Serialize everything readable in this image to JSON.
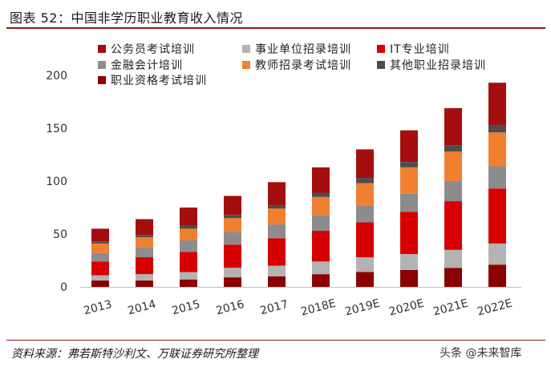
{
  "title": "图表 52：中国非学历职业教育收入情况",
  "source": "资料来源：弗若斯特沙利文、万联证券研究所整理",
  "watermark": "头条 @未来智库",
  "chart_data": {
    "type": "bar",
    "stacked": true,
    "categories": [
      "2013",
      "2014",
      "2015",
      "2016",
      "2017",
      "2018E",
      "2019E",
      "2020E",
      "2021E",
      "2022E"
    ],
    "ylim": [
      0,
      200
    ],
    "yticks": [
      0,
      50,
      100,
      150,
      200
    ],
    "grid": false,
    "legend_position": "top-left",
    "series": [
      {
        "name": "职业资格考试培训",
        "color": "#8b0000",
        "values": [
          6,
          6,
          7,
          9,
          10,
          12,
          14,
          16,
          18,
          21
        ]
      },
      {
        "name": "事业单位招录培训",
        "color": "#b3b3b3",
        "values": [
          5,
          6,
          7,
          9,
          10,
          12,
          14,
          15,
          17,
          20
        ]
      },
      {
        "name": "IT专业培训",
        "color": "#d60000",
        "values": [
          13,
          16,
          19,
          22,
          26,
          29,
          33,
          40,
          46,
          52
        ]
      },
      {
        "name": "金融会计培训",
        "color": "#8c8c8c",
        "values": [
          8,
          9,
          11,
          12,
          13,
          15,
          16,
          17,
          19,
          21
        ]
      },
      {
        "name": "教师招录考试培训",
        "color": "#f08030",
        "values": [
          9,
          10,
          11,
          13,
          15,
          17,
          21,
          25,
          28,
          32
        ]
      },
      {
        "name": "其他职业招录培训",
        "color": "#4d4d4d",
        "values": [
          2,
          2,
          3,
          3,
          3,
          4,
          5,
          5,
          6,
          7
        ]
      },
      {
        "name": "公务员考试培训",
        "color": "#a50e0e",
        "values": [
          12,
          15,
          17,
          18,
          22,
          24,
          27,
          30,
          35,
          40
        ]
      }
    ]
  }
}
